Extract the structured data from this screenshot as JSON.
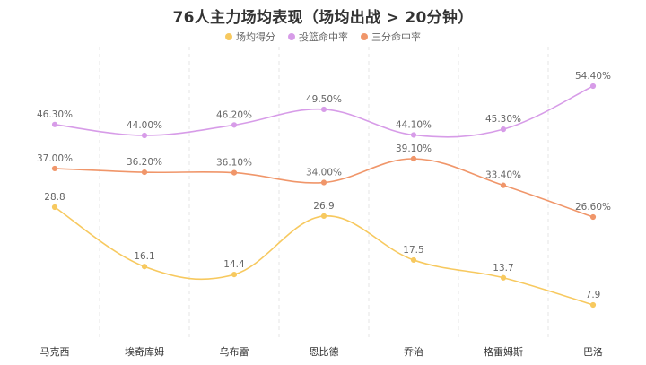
{
  "chart_data": {
    "type": "line",
    "title": "76人主力场均表现（场均出战 > 20分钟）",
    "categories": [
      "马克西",
      "埃奇库姆",
      "乌布雷",
      "恩比德",
      "乔治",
      "格雷姆斯",
      "巴洛"
    ],
    "series": [
      {
        "name": "场均得分",
        "color": "#f7c95f",
        "values": [
          28.8,
          16.1,
          14.4,
          26.9,
          17.5,
          13.7,
          7.9
        ],
        "labels": [
          "28.8",
          "16.1",
          "14.4",
          "26.9",
          "17.5",
          "13.7",
          "7.9"
        ]
      },
      {
        "name": "投篮命中率",
        "color": "#d79ce8",
        "values": [
          46.3,
          44.0,
          46.2,
          49.5,
          44.1,
          45.3,
          54.4
        ],
        "labels": [
          "46.30%",
          "44.00%",
          "46.20%",
          "49.50%",
          "44.10%",
          "45.30%",
          "54.40%"
        ]
      },
      {
        "name": "三分命中率",
        "color": "#f0966a",
        "values": [
          37.0,
          36.2,
          36.1,
          34.0,
          39.1,
          33.4,
          26.6
        ],
        "labels": [
          "37.00%",
          "36.20%",
          "36.10%",
          "34.00%",
          "39.10%",
          "33.40%",
          "26.60%"
        ]
      }
    ],
    "grid": {
      "vertical": true,
      "horizontal": false
    },
    "legend_position": "top-center",
    "smooth": true
  }
}
